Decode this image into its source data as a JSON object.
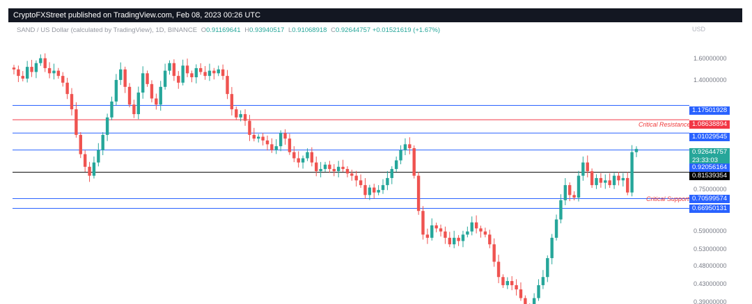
{
  "header": {
    "published_by": "CryptoFXStreet published on TradingView.com, Feb 08, 2023 00:26 UTC"
  },
  "legend": {
    "symbol": "SAND / US Dollar (calculated by TradingView), 1D, BINANCE",
    "open_label": "O",
    "open": "0.91169641",
    "high_label": "H",
    "high": "0.93940517",
    "low_label": "L",
    "low": "0.91068918",
    "close_label": "C",
    "close": "0.92644757",
    "change": "+0.01521619 (+1.67%)"
  },
  "axis": {
    "currency": "USD",
    "ticks": [
      "1.60000000",
      "1.40000000",
      "0.75000000",
      "0.59000000",
      "0.53000000",
      "0.48000000",
      "0.43000000",
      "0.39000000"
    ]
  },
  "levels": [
    {
      "value": "1.17501928",
      "color": "#2962ff"
    },
    {
      "value": "1.08638894",
      "color": "#f23645",
      "label": "Critical Resistance"
    },
    {
      "value": "1.01029545",
      "color": "#2962ff"
    },
    {
      "value": "0.92056164",
      "color": "#2962ff"
    },
    {
      "value": "0.81539354",
      "color": "#000000"
    },
    {
      "value": "0.70599574",
      "color": "#2962ff",
      "label": "Critical Support"
    },
    {
      "value": "0.66950131",
      "color": "#2962ff"
    }
  ],
  "last_price": {
    "value": "0.92644757",
    "countdown": "23:33:03"
  },
  "colors": {
    "up": "#26a69a",
    "down": "#ef5350",
    "accent": "#2962ff"
  },
  "chart_data": {
    "type": "candlestick",
    "y_scale": "log",
    "ylim": [
      0.375,
      1.85
    ],
    "candles_close": [
      1.43,
      1.38,
      1.36,
      1.45,
      1.41,
      1.48,
      1.52,
      1.44,
      1.4,
      1.42,
      1.38,
      1.33,
      1.25,
      1.15,
      1.0,
      0.9,
      0.84,
      0.8,
      0.86,
      0.92,
      1.0,
      1.1,
      1.2,
      1.35,
      1.43,
      1.3,
      1.18,
      1.12,
      1.26,
      1.4,
      1.32,
      1.22,
      1.18,
      1.3,
      1.42,
      1.48,
      1.38,
      1.33,
      1.46,
      1.4,
      1.37,
      1.44,
      1.41,
      1.38,
      1.42,
      1.4,
      1.43,
      1.38,
      1.25,
      1.15,
      1.1,
      1.12,
      1.08,
      1.0,
      0.98,
      0.99,
      0.97,
      0.95,
      0.92,
      0.94,
      1.01,
      0.98,
      0.91,
      0.88,
      0.86,
      0.88,
      0.91,
      0.86,
      0.82,
      0.83,
      0.85,
      0.83,
      0.82,
      0.84,
      0.83,
      0.81,
      0.8,
      0.78,
      0.76,
      0.72,
      0.75,
      0.73,
      0.74,
      0.76,
      0.79,
      0.83,
      0.87,
      0.92,
      0.95,
      0.93,
      0.8,
      0.66,
      0.58,
      0.57,
      0.61,
      0.6,
      0.59,
      0.57,
      0.55,
      0.57,
      0.56,
      0.58,
      0.59,
      0.62,
      0.6,
      0.59,
      0.58,
      0.55,
      0.5,
      0.46,
      0.44,
      0.45,
      0.44,
      0.43,
      0.41,
      0.39,
      0.38,
      0.41,
      0.44,
      0.46,
      0.51,
      0.57,
      0.63,
      0.7,
      0.76,
      0.72,
      0.71,
      0.8,
      0.86,
      0.82,
      0.76,
      0.79,
      0.77,
      0.78,
      0.76,
      0.8,
      0.78,
      0.79,
      0.73,
      0.91,
      0.926
    ]
  }
}
